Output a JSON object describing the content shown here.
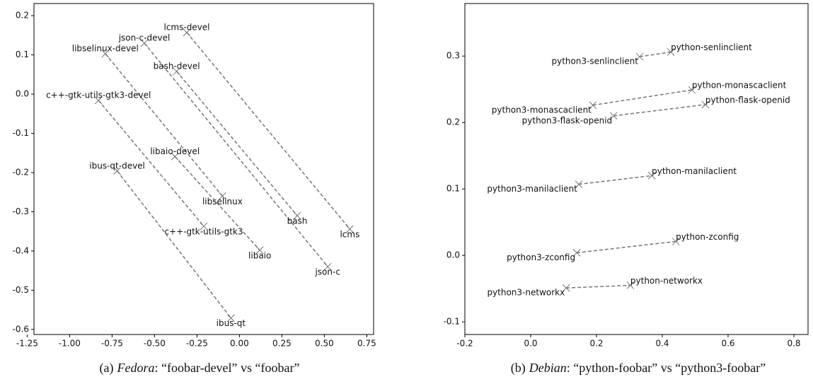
{
  "chart_data": [
    {
      "type": "scatter",
      "caption_tag": "(a)",
      "caption_source": "Fedora",
      "caption_text": ": “foobar-devel” vs “foobar”",
      "xlim": [
        -1.21,
        0.79
      ],
      "xticks": [
        -1.25,
        {
          "value": -1,
          "label": "-1.00"
        },
        -0.75,
        {
          "value": -0.5,
          "label": "-0.50"
        },
        -0.25,
        {
          "value": 0,
          "label": "0.00"
        },
        0.25,
        {
          "value": 0.5,
          "label": "0.50"
        },
        0.75
      ],
      "ylim": [
        -0.613,
        0.231
      ],
      "yticks": [
        -0.6,
        -0.5,
        -0.4,
        -0.3,
        -0.2,
        -0.1,
        {
          "value": 0,
          "label": "0.0"
        },
        0.1,
        0.2
      ],
      "color": "#777777",
      "pairs": [
        {
          "labels": [
            "lcms-devel",
            "lcms"
          ],
          "x": [
            -0.31,
            0.65
          ],
          "y": [
            0.157,
            -0.344
          ]
        },
        {
          "labels": [
            "json-c-devel",
            "json-c"
          ],
          "x": [
            -0.56,
            0.52
          ],
          "y": [
            0.13,
            -0.44
          ]
        },
        {
          "labels": [
            "libselinux-devel",
            "libselinux"
          ],
          "x": [
            -0.79,
            -0.1
          ],
          "y": [
            0.103,
            -0.26
          ]
        },
        {
          "labels": [
            "bash-devel",
            "bash"
          ],
          "x": [
            -0.37,
            0.34
          ],
          "y": [
            0.058,
            -0.31
          ]
        },
        {
          "labels": [
            "c++-gtk-utils-gtk3-devel",
            "c++-gtk-utils-gtk3"
          ],
          "x": [
            -0.83,
            -0.21
          ],
          "y": [
            -0.016,
            -0.337
          ]
        },
        {
          "labels": [
            "libaio-devel",
            "libaio"
          ],
          "x": [
            -0.38,
            0.12
          ],
          "y": [
            -0.159,
            -0.398
          ]
        },
        {
          "labels": [
            "ibus-qt-devel",
            "ibus-qt"
          ],
          "x": [
            -0.72,
            -0.05
          ],
          "y": [
            -0.196,
            -0.571
          ]
        }
      ]
    },
    {
      "type": "scatter",
      "caption_tag": "(b)",
      "caption_source": "Debian",
      "caption_text": ": “python-foobar” vs “python3-foobar”",
      "xlim": [
        -0.2,
        0.843
      ],
      "xticks": [
        -0.2,
        {
          "value": 0,
          "label": "0.0"
        },
        0.2,
        0.4,
        0.6,
        0.8
      ],
      "ylim": [
        -0.119,
        0.379
      ],
      "yticks": [
        -0.1,
        {
          "value": 0,
          "label": "0.0"
        },
        0.1,
        0.2,
        0.3
      ],
      "color": "#777777",
      "pairs": [
        {
          "labels": [
            "python3-senlinclient",
            "python-senlinclient"
          ],
          "x": [
            0.331,
            0.426
          ],
          "y": [
            0.299,
            0.306
          ]
        },
        {
          "labels": [
            "python3-monascaclient",
            "python-monascaclient"
          ],
          "x": [
            0.189,
            0.49
          ],
          "y": [
            0.226,
            0.249
          ]
        },
        {
          "labels": [
            "python3-flask-openid",
            "python-flask-openid"
          ],
          "x": [
            0.252,
            0.531
          ],
          "y": [
            0.21,
            0.227
          ]
        },
        {
          "labels": [
            "python3-manilaclient",
            "python-manilaclient"
          ],
          "x": [
            0.146,
            0.368
          ],
          "y": [
            0.107,
            0.12
          ]
        },
        {
          "labels": [
            "python3-zconfig",
            "python-zconfig"
          ],
          "x": [
            0.14,
            0.441
          ],
          "y": [
            0.004,
            0.021
          ]
        },
        {
          "labels": [
            "python3-networkx",
            "python-networkx"
          ],
          "x": [
            0.108,
            0.303
          ],
          "y": [
            -0.049,
            -0.045
          ]
        }
      ]
    }
  ]
}
